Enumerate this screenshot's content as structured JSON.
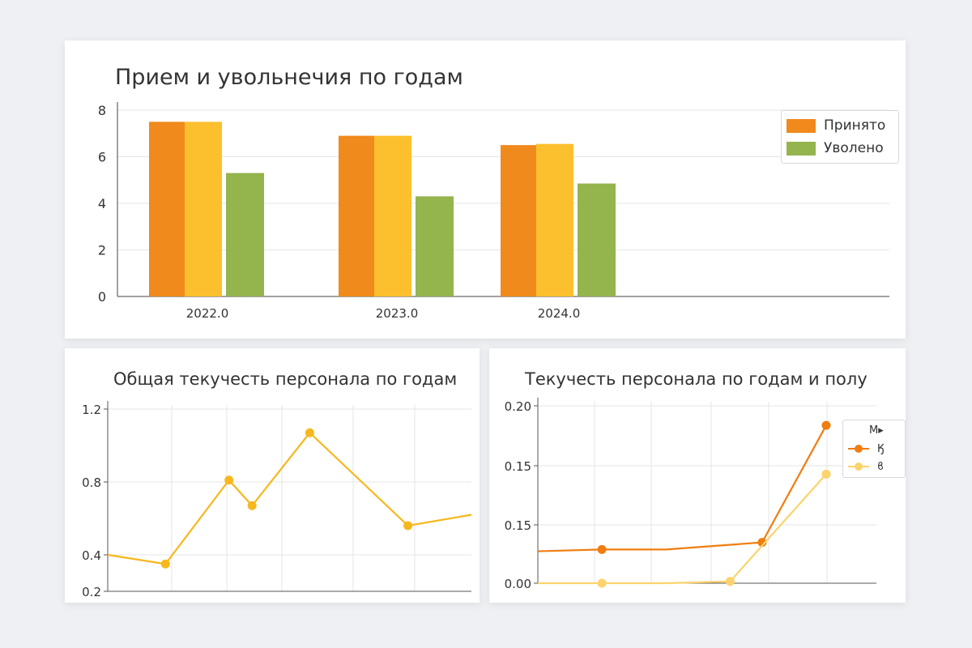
{
  "chart_data": [
    {
      "type": "bar",
      "title": "Прием и увольнечия по годам",
      "categories": [
        "2022.0",
        "2023.0",
        "2024.0"
      ],
      "ylim": [
        0,
        8
      ],
      "yticks": [
        "0",
        "2",
        "4",
        "6",
        "8"
      ],
      "grid": true,
      "legend_position": "top-right",
      "series": [
        {
          "name": "Принято",
          "values": [
            7.5,
            6.9,
            6.5
          ],
          "color": "#f08a1c"
        },
        {
          "name": "",
          "values": [
            7.5,
            6.9,
            6.55
          ],
          "color": "#fcc02e"
        },
        {
          "name": "Уволено",
          "values": [
            5.3,
            4.3,
            4.85
          ],
          "color": "#94b44e"
        }
      ]
    },
    {
      "type": "line",
      "title": "Общая текучесть персонала по годам",
      "ylim": [
        0.2,
        1.2
      ],
      "yticks": [
        "0.2",
        "0.4",
        "0.8",
        "1.2"
      ],
      "grid": true,
      "series": [
        {
          "name": "",
          "color": "#f6b81e",
          "x": [
            0,
            1,
            2.1,
            2.5,
            3.5,
            5.2,
            6.3
          ],
          "values": [
            0.4,
            0.35,
            0.81,
            0.67,
            1.07,
            0.56,
            0.62
          ],
          "markers": [
            false,
            true,
            true,
            true,
            true,
            true,
            false
          ]
        }
      ]
    },
    {
      "type": "line",
      "title": "Текучесть персонала по годам и полу",
      "ylim": [
        0,
        0.2
      ],
      "yticks": [
        "0.00",
        "0.15",
        "0.15",
        "0.20"
      ],
      "grid": true,
      "legend_position": "top-right",
      "legend_title": "М▸",
      "series": [
        {
          "name": "Ӄ",
          "color": "#f07d10",
          "x": [
            0,
            1,
            2,
            3.5,
            4.5
          ],
          "values": [
            0.036,
            0.038,
            0.038,
            0.046,
            0.178
          ],
          "markers": [
            false,
            true,
            false,
            true,
            true
          ]
        },
        {
          "name": "ϐ",
          "color": "#fcd36c",
          "x": [
            0,
            1,
            2,
            3,
            4.5
          ],
          "values": [
            0,
            0,
            0,
            0.002,
            0.123
          ],
          "markers": [
            false,
            true,
            false,
            true,
            true
          ]
        }
      ]
    }
  ]
}
